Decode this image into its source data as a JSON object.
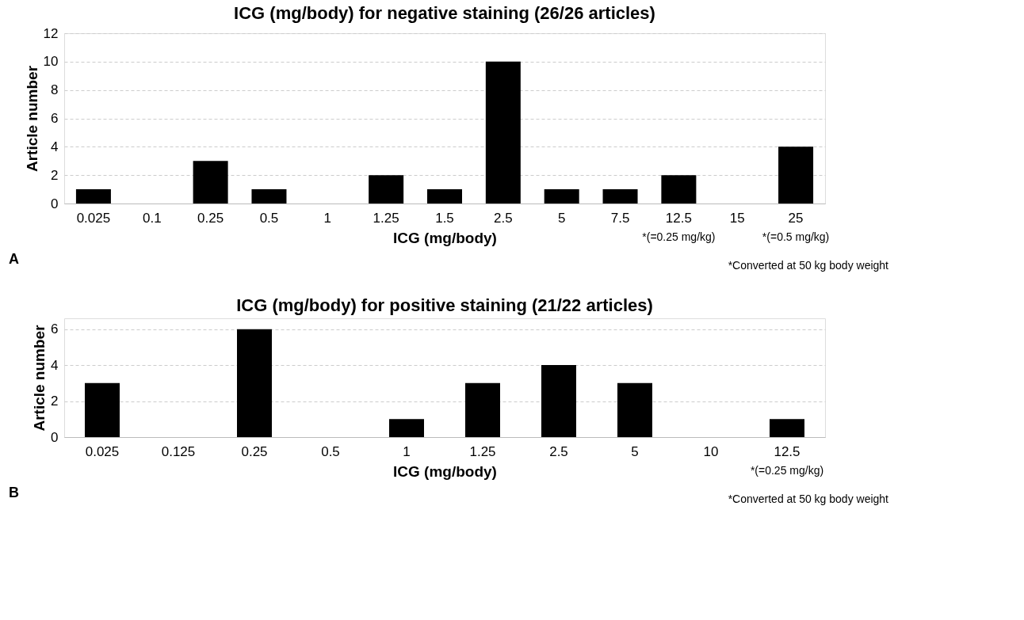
{
  "chart_data": [
    {
      "type": "bar",
      "title": "ICG (mg/body) for negative staining (26/26 articles)",
      "xlabel": "ICG (mg/body)",
      "ylabel": "Article number",
      "categories": [
        "0.025",
        "0.1",
        "0.25",
        "0.5",
        "1",
        "1.25",
        "1.5",
        "2.5",
        "5",
        "7.5",
        "12.5",
        "15",
        "25"
      ],
      "values": [
        1,
        0,
        3,
        1,
        0,
        2,
        1,
        10,
        1,
        1,
        2,
        0,
        4
      ],
      "color": "#000000",
      "ylim": [
        0,
        12
      ],
      "yticks": [
        0,
        2,
        4,
        6,
        8,
        10,
        12
      ],
      "grid": "y",
      "annotations": [
        "*(=0.25 mg/kg)",
        "*(=0.5 mg/kg)",
        "A",
        "*Converted at 50 kg body weight"
      ]
    },
    {
      "type": "bar",
      "title": "ICG (mg/body) for positive staining (21/22 articles)",
      "xlabel": "ICG (mg/body)",
      "ylabel": "Article number",
      "categories": [
        "0.025",
        "0.125",
        "0.25",
        "0.5",
        "1",
        "1.25",
        "2.5",
        "5",
        "10",
        "12.5"
      ],
      "values": [
        3,
        0,
        6,
        0,
        1,
        3,
        4,
        3,
        0,
        1
      ],
      "color": "#000000",
      "ylim": [
        0,
        6.6
      ],
      "yticks": [
        0,
        2,
        4,
        6
      ],
      "grid": "y",
      "annotations": [
        "*(=0.25 mg/kg)",
        "B",
        "*Converted at 50 kg body weight"
      ]
    }
  ]
}
